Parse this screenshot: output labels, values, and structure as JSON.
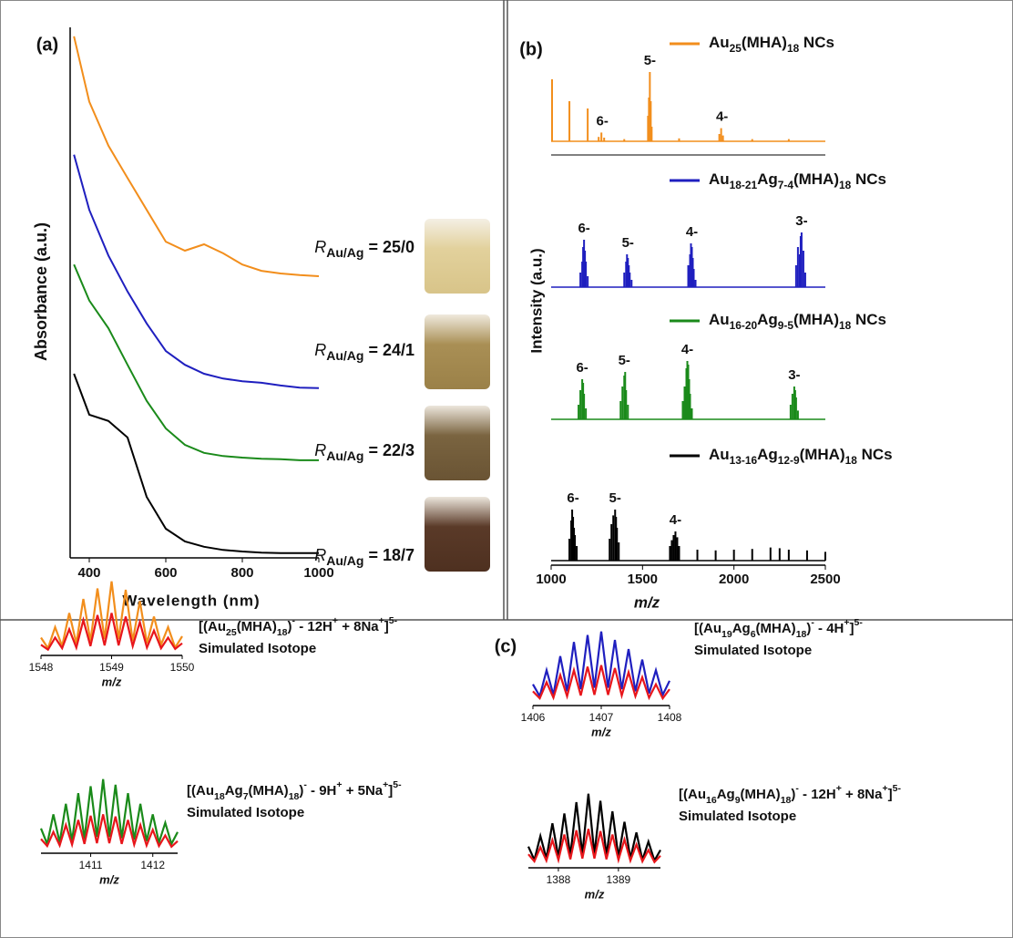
{
  "chart_data": [
    {
      "type": "line",
      "panel_label": "(a)",
      "x_label": "Wavelength (nm)",
      "y_label": "Absorbance (a.u.)",
      "x": [
        360,
        400,
        450,
        500,
        550,
        600,
        650,
        700,
        750,
        800,
        850,
        900,
        950,
        1000
      ],
      "xlim": [
        350,
        1000
      ],
      "xticks": [
        400,
        600,
        800,
        1000
      ],
      "ylim": [
        0,
        10
      ],
      "series": [
        {
          "label_parts": [
            "R",
            "Au/Ag",
            " = 25/0"
          ],
          "color": "#f28e1c",
          "values": [
            9.83,
            8.6,
            7.77,
            7.16,
            6.56,
            5.96,
            5.79,
            5.91,
            5.74,
            5.53,
            5.41,
            5.36,
            5.33,
            5.31
          ]
        },
        {
          "label_parts": [
            "R",
            "Au/Ag",
            " = 24/1"
          ],
          "color": "#1f1fbf",
          "values": [
            7.6,
            6.56,
            5.7,
            5.02,
            4.42,
            3.9,
            3.64,
            3.47,
            3.38,
            3.33,
            3.3,
            3.25,
            3.21,
            3.2
          ]
        },
        {
          "label_parts": [
            "R",
            "Au/Ag",
            " = 22/3"
          ],
          "color": "#1a8a1a",
          "values": [
            5.53,
            4.85,
            4.33,
            3.64,
            2.96,
            2.44,
            2.13,
            1.98,
            1.92,
            1.89,
            1.87,
            1.86,
            1.84,
            1.84
          ]
        },
        {
          "label_parts": [
            "R",
            "Au/Ag",
            " = 18/7"
          ],
          "color": "#000000",
          "values": [
            3.47,
            2.7,
            2.58,
            2.27,
            1.15,
            0.55,
            0.31,
            0.21,
            0.15,
            0.12,
            0.1,
            0.09,
            0.09,
            0.09
          ]
        }
      ]
    },
    {
      "type": "stick",
      "panel_label": "(b)",
      "x_label": "m/z",
      "y_label": "Intensity (a.u.)",
      "xlim": [
        1000,
        2500
      ],
      "xticks": [
        1000,
        1500,
        2000,
        2500
      ],
      "ylim": [
        0,
        100
      ],
      "series": [
        {
          "name": "Au25(MHA)18 NCs",
          "color": "#f28e1c",
          "x": [
            1005,
            1100,
            1200,
            1260,
            1275,
            1290,
            1400,
            1530,
            1535,
            1540,
            1545,
            1550,
            1700,
            1920,
            1930,
            1940,
            2100,
            2300
          ],
          "values": [
            85,
            55,
            45,
            6,
            12,
            5,
            3,
            35,
            60,
            95,
            55,
            20,
            4,
            10,
            18,
            8,
            3,
            3
          ],
          "annotations": [
            {
              "label": "6-",
              "x": 1280
            },
            {
              "label": "5-",
              "x": 1540
            },
            {
              "label": "4-",
              "x": 1935
            }
          ]
        },
        {
          "name": "Au18-21Ag7-4(MHA)18 NCs",
          "color": "#1f1fbf",
          "x": [
            1160,
            1170,
            1175,
            1180,
            1185,
            1190,
            1200,
            1400,
            1410,
            1415,
            1420,
            1425,
            1430,
            1440,
            1750,
            1760,
            1765,
            1770,
            1775,
            1780,
            1790,
            2340,
            2350,
            2360,
            2365,
            2370,
            2380,
            2390
          ],
          "values": [
            20,
            35,
            55,
            65,
            50,
            35,
            15,
            20,
            35,
            45,
            40,
            30,
            20,
            10,
            30,
            45,
            60,
            55,
            40,
            25,
            10,
            30,
            55,
            45,
            70,
            75,
            50,
            20
          ],
          "annotations": [
            {
              "label": "6-",
              "x": 1180
            },
            {
              "label": "5-",
              "x": 1420
            },
            {
              "label": "4-",
              "x": 1770
            },
            {
              "label": "3-",
              "x": 2370
            }
          ]
        },
        {
          "name": "Au16-20Ag9-5(MHA)18 NCs",
          "color": "#1a8a1a",
          "x": [
            1150,
            1160,
            1170,
            1175,
            1180,
            1190,
            1380,
            1390,
            1400,
            1405,
            1410,
            1420,
            1720,
            1730,
            1740,
            1745,
            1750,
            1755,
            1760,
            1770,
            2310,
            2320,
            2330,
            2335,
            2340,
            2350
          ],
          "values": [
            20,
            40,
            55,
            50,
            35,
            15,
            25,
            45,
            60,
            65,
            40,
            20,
            25,
            45,
            70,
            80,
            75,
            55,
            35,
            15,
            20,
            35,
            45,
            40,
            30,
            12
          ],
          "annotations": [
            {
              "label": "6-",
              "x": 1170
            },
            {
              "label": "5-",
              "x": 1400
            },
            {
              "label": "4-",
              "x": 1745
            },
            {
              "label": "3-",
              "x": 2330
            }
          ]
        },
        {
          "name": "Au13-16Ag12-9(MHA)18 NCs",
          "color": "#000000",
          "x": [
            1100,
            1110,
            1115,
            1120,
            1125,
            1130,
            1140,
            1320,
            1330,
            1340,
            1350,
            1355,
            1360,
            1370,
            1650,
            1660,
            1670,
            1680,
            1690,
            1700,
            1800,
            1900,
            2000,
            2100,
            2200,
            2250,
            2300,
            2400,
            2500
          ],
          "values": [
            30,
            55,
            70,
            60,
            45,
            35,
            20,
            30,
            50,
            62,
            70,
            60,
            45,
            25,
            20,
            28,
            35,
            40,
            32,
            20,
            15,
            14,
            15,
            16,
            18,
            17,
            15,
            14,
            12
          ],
          "annotations": [
            {
              "label": "6-",
              "x": 1120
            },
            {
              "label": "5-",
              "x": 1350
            },
            {
              "label": "4-",
              "x": 1680
            }
          ]
        }
      ]
    },
    {
      "type": "isotope",
      "panel_label": "(c)",
      "x_label": "m/z",
      "xlim": [
        1548,
        1550
      ],
      "xticks": [
        1548,
        1549,
        1550
      ],
      "ylim": [
        0,
        110
      ],
      "x": [
        1548.0,
        1548.1,
        1548.2,
        1548.3,
        1548.4,
        1548.5,
        1548.6,
        1548.7,
        1548.8,
        1548.9,
        1549.0,
        1549.1,
        1549.2,
        1549.3,
        1549.4,
        1549.5,
        1549.6,
        1549.7,
        1549.8,
        1549.9,
        1550.0
      ],
      "series": [
        {
          "name": "[(Au25(MHA)18)- - 12H+ + 8Na+]5-",
          "color": "#f28e1c",
          "values": [
            20,
            5,
            35,
            8,
            55,
            12,
            75,
            15,
            90,
            18,
            100,
            18,
            88,
            15,
            72,
            12,
            50,
            10,
            35,
            6,
            22
          ]
        },
        {
          "name": "Simulated Isotope",
          "color": "#e8161b",
          "values": [
            10,
            3,
            20,
            5,
            32,
            6,
            45,
            8,
            52,
            9,
            55,
            9,
            50,
            8,
            42,
            6,
            30,
            5,
            20,
            4,
            12
          ]
        }
      ]
    },
    {
      "type": "isotope",
      "x_label": "m/z",
      "xlim": [
        1406,
        1408
      ],
      "xticks": [
        1406,
        1407,
        1408
      ],
      "ylim": [
        0,
        110
      ],
      "x": [
        1406.0,
        1406.1,
        1406.2,
        1406.3,
        1406.4,
        1406.5,
        1406.6,
        1406.7,
        1406.8,
        1406.9,
        1407.0,
        1407.1,
        1407.2,
        1407.3,
        1407.4,
        1407.5,
        1407.6,
        1407.7,
        1407.8,
        1407.9,
        1408.0
      ],
      "series": [
        {
          "name": "[(Au19Ag6(MHA)18)- - 4H+]5-",
          "color": "#1f1fbf",
          "values": [
            25,
            8,
            45,
            10,
            65,
            15,
            85,
            18,
            95,
            20,
            100,
            20,
            88,
            18,
            75,
            15,
            60,
            12,
            45,
            10,
            30
          ]
        },
        {
          "name": "Simulated Isotope",
          "color": "#e8161b",
          "values": [
            15,
            5,
            28,
            6,
            38,
            8,
            45,
            9,
            50,
            10,
            52,
            10,
            48,
            9,
            42,
            8,
            35,
            6,
            25,
            5,
            18
          ]
        }
      ]
    },
    {
      "type": "isotope",
      "x_label": "m/z",
      "xlim": [
        1410.2,
        1412.4
      ],
      "xticks": [
        1411,
        1412
      ],
      "ylim": [
        0,
        110
      ],
      "x": [
        1410.2,
        1410.3,
        1410.4,
        1410.5,
        1410.6,
        1410.7,
        1410.8,
        1410.9,
        1411.0,
        1411.1,
        1411.2,
        1411.3,
        1411.4,
        1411.5,
        1411.6,
        1411.7,
        1411.8,
        1411.9,
        1412.0,
        1412.1,
        1412.2,
        1412.3,
        1412.4
      ],
      "series": [
        {
          "name": "[(Au18Ag7(MHA)18)- - 9H+ + 5Na+]5-",
          "color": "#1a8a1a",
          "values": [
            30,
            8,
            50,
            10,
            65,
            12,
            80,
            15,
            90,
            18,
            100,
            18,
            92,
            16,
            80,
            14,
            65,
            12,
            50,
            10,
            38,
            8,
            25
          ]
        },
        {
          "name": "Simulated Isotope",
          "color": "#e8161b",
          "values": [
            15,
            5,
            25,
            6,
            35,
            7,
            42,
            8,
            48,
            9,
            50,
            9,
            47,
            8,
            42,
            7,
            35,
            6,
            28,
            5,
            20,
            4,
            12
          ]
        }
      ]
    },
    {
      "type": "isotope",
      "x_label": "m/z",
      "xlim": [
        1387.5,
        1389.7
      ],
      "xticks": [
        1388,
        1389
      ],
      "ylim": [
        0,
        110
      ],
      "x": [
        1387.5,
        1387.6,
        1387.7,
        1387.8,
        1387.9,
        1388.0,
        1388.1,
        1388.2,
        1388.3,
        1388.4,
        1388.5,
        1388.6,
        1388.7,
        1388.8,
        1388.9,
        1389.0,
        1389.1,
        1389.2,
        1389.3,
        1389.4,
        1389.5,
        1389.6,
        1389.7
      ],
      "series": [
        {
          "name": "[(Au16Ag9(MHA)18)- - 12H+ + 8Na+]5-",
          "color": "#000000",
          "values": [
            25,
            6,
            40,
            8,
            58,
            10,
            72,
            12,
            88,
            14,
            100,
            14,
            90,
            12,
            75,
            10,
            60,
            8,
            45,
            6,
            32,
            5,
            20
          ]
        },
        {
          "name": "Simulated Isotope",
          "color": "#e8161b",
          "values": [
            14,
            4,
            24,
            5,
            34,
            6,
            42,
            7,
            48,
            8,
            50,
            8,
            47,
            7,
            42,
            6,
            35,
            5,
            28,
            4,
            20,
            3,
            12
          ]
        }
      ]
    }
  ]
}
